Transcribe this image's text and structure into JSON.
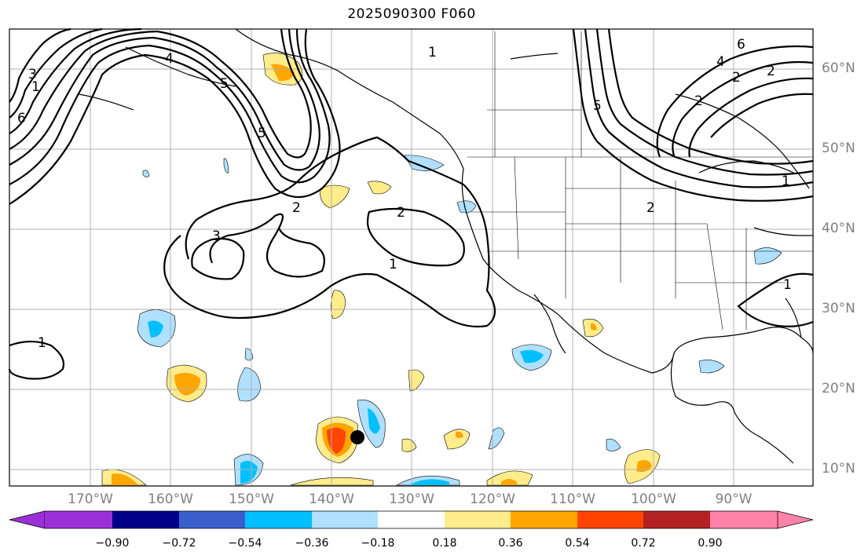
{
  "title": "2025090300 F060",
  "lat_ticks": [
    "60°N",
    "50°N",
    "40°N",
    "30°N",
    "20°N",
    "10°N"
  ],
  "lon_ticks": [
    "170°W",
    "160°W",
    "150°W",
    "140°W",
    "130°W",
    "120°W",
    "110°W",
    "100°W",
    "90°W"
  ],
  "colorbar": {
    "labels": [
      "−0.90",
      "−0.72",
      "−0.54",
      "−0.36",
      "−0.18",
      "0.18",
      "0.36",
      "0.54",
      "0.72",
      "0.90"
    ],
    "colors": [
      "#9b30d9",
      "#00008b",
      "#3a5fcd",
      "#00bfff",
      "#b0e0ff",
      "#ffffff",
      "#ffec8b",
      "#ffa500",
      "#ff4500",
      "#b22222",
      "#ff82ab"
    ]
  },
  "contour_labels": [
    "1",
    "2",
    "3",
    "4",
    "5",
    "6",
    "1",
    "2",
    "3",
    "5",
    "2",
    "1",
    "1",
    "2",
    "4",
    "6",
    "2",
    "5",
    "2",
    "1",
    "1"
  ],
  "storm_marker": {
    "lat": 13.5,
    "lon": -136,
    "color": "#000000"
  }
}
